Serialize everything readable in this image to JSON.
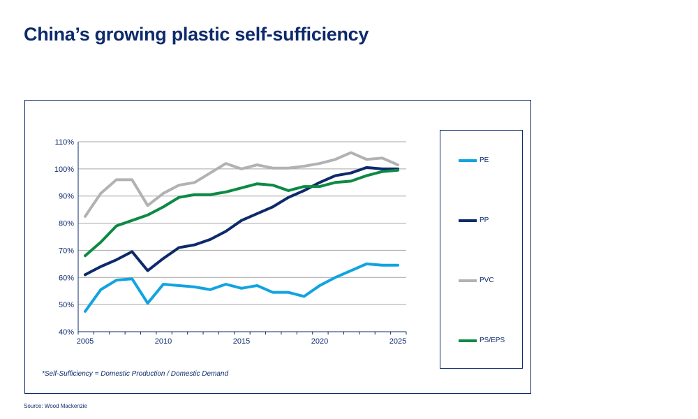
{
  "title": "China’s growing plastic self-sufficiency",
  "note": "*Self-Sufficiency = Domestic Production / Domestic Demand",
  "source": "Source:  Wood Mackenzie",
  "chart_data": {
    "type": "line",
    "x": [
      2005,
      2006,
      2007,
      2008,
      2009,
      2010,
      2011,
      2012,
      2013,
      2014,
      2015,
      2016,
      2017,
      2018,
      2019,
      2020,
      2021,
      2022,
      2023,
      2024,
      2025
    ],
    "xlim": [
      2005,
      2025
    ],
    "xticks": [
      "2005",
      "2010",
      "2015",
      "2020",
      "2025"
    ],
    "ylim": [
      40,
      110
    ],
    "yticks": [
      "40%",
      "50%",
      "60%",
      "70%",
      "80%",
      "90%",
      "100%",
      "110%"
    ],
    "grid": true,
    "legend": "right",
    "series": [
      {
        "name": "PE",
        "color": "#12a3e0",
        "values": [
          47.5,
          55.5,
          59,
          59.5,
          50.5,
          57.5,
          57,
          56.5,
          55.5,
          57.5,
          56,
          57,
          54.5,
          54.5,
          53,
          57,
          60,
          62.5,
          65,
          64.5,
          64.5
        ]
      },
      {
        "name": "PP",
        "color": "#0d2a6b",
        "values": [
          61,
          64,
          66.5,
          69.5,
          62.5,
          67,
          71,
          72,
          74,
          77,
          81,
          83.5,
          86,
          89.5,
          92,
          95,
          97.5,
          98.5,
          100.5,
          100,
          100
        ]
      },
      {
        "name": "PVC",
        "color": "#b2b2b4",
        "values": [
          82.5,
          91,
          96,
          96,
          86.5,
          91,
          94,
          95,
          98.5,
          102,
          100,
          101.5,
          100.3,
          100.3,
          101,
          102,
          103.5,
          106,
          103.5,
          104,
          101.5
        ]
      },
      {
        "name": "PS/EPS",
        "color": "#0c8a44",
        "values": [
          68,
          73,
          79,
          81,
          83,
          86,
          89.5,
          90.5,
          90.5,
          91.5,
          93,
          94.5,
          94,
          92,
          93.5,
          93.5,
          95,
          95.5,
          97.5,
          99,
          99.5
        ]
      }
    ]
  }
}
